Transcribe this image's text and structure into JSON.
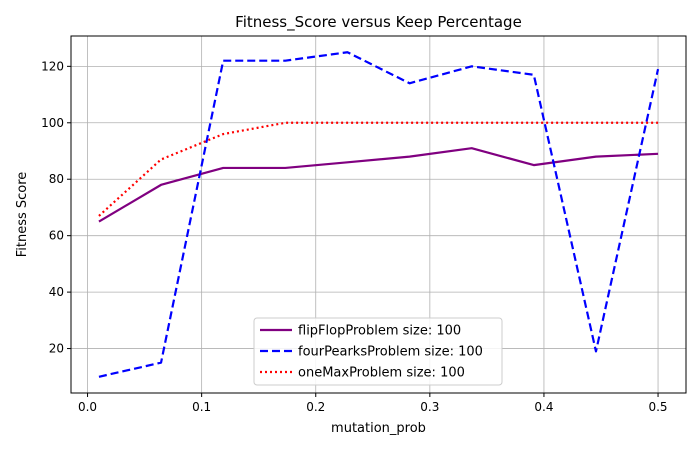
{
  "chart_data": {
    "type": "line",
    "title": "Fitness_Score versus Keep Percentage",
    "xlabel": "mutation_prob",
    "ylabel": "Fitness Score",
    "xlim": [
      -0.0145,
      0.5245
    ],
    "ylim": [
      4.25,
      130.75
    ],
    "xticks": [
      0.0,
      0.1,
      0.2,
      0.3,
      0.4,
      0.5
    ],
    "xtick_labels": [
      "0.0",
      "0.1",
      "0.2",
      "0.3",
      "0.4",
      "0.5"
    ],
    "yticks": [
      20,
      40,
      60,
      80,
      100,
      120
    ],
    "ytick_labels": [
      "20",
      "40",
      "60",
      "80",
      "100",
      "120"
    ],
    "grid": true,
    "legend_position": "lower-center",
    "x": [
      0.01,
      0.0644,
      0.1189,
      0.1733,
      0.2278,
      0.2822,
      0.3367,
      0.3911,
      0.4456,
      0.5
    ],
    "series": [
      {
        "name": "flipFlopProblem size: 100",
        "color": "#800080",
        "style": "solid",
        "values": [
          65,
          78,
          84,
          84,
          86,
          88,
          91,
          85,
          88,
          89
        ]
      },
      {
        "name": "fourPearksProblem size: 100",
        "color": "#0000ff",
        "style": "dashed",
        "values": [
          10,
          15,
          122,
          122,
          125,
          114,
          120,
          117,
          19,
          119
        ]
      },
      {
        "name": "oneMaxProblem size: 100",
        "color": "#ff0000",
        "style": "dotted",
        "values": [
          67,
          87,
          96,
          100,
          100,
          100,
          100,
          100,
          100,
          100
        ]
      }
    ]
  }
}
